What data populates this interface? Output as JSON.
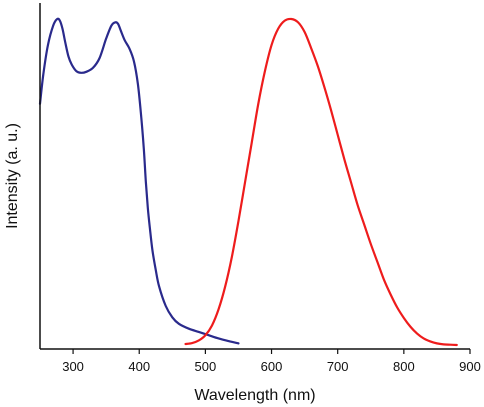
{
  "chart_data": {
    "type": "line",
    "title": "",
    "xlabel": "Wavelength (nm)",
    "ylabel": "Intensity (a. u.)",
    "xlim": [
      250,
      900
    ],
    "ylim": [
      0,
      1
    ],
    "x_ticks": [
      300,
      400,
      500,
      600,
      700,
      800,
      900
    ],
    "y_ticks": [],
    "grid": false,
    "legend": "none",
    "series": [
      {
        "color": "#2a2a8c",
        "x": [
          250,
          255,
          262,
          270,
          276,
          280,
          284,
          288,
          293,
          298,
          305,
          312,
          320,
          330,
          340,
          350,
          358,
          364,
          368,
          372,
          378,
          385,
          392,
          398,
          403,
          407,
          410,
          413,
          416,
          420,
          425,
          430,
          440,
          450,
          460,
          475,
          490,
          505,
          520,
          535,
          550
        ],
        "y": [
          0.74,
          0.83,
          0.92,
          0.98,
          1.0,
          0.995,
          0.97,
          0.93,
          0.885,
          0.86,
          0.84,
          0.835,
          0.838,
          0.85,
          0.88,
          0.94,
          0.98,
          0.99,
          0.985,
          0.965,
          0.935,
          0.91,
          0.87,
          0.8,
          0.7,
          0.6,
          0.5,
          0.42,
          0.36,
          0.29,
          0.23,
          0.18,
          0.12,
          0.085,
          0.065,
          0.05,
          0.04,
          0.03,
          0.02,
          0.012,
          0.005
        ]
      },
      {
        "color": "#ee1c1c",
        "x": [
          470,
          480,
          490,
          500,
          510,
          520,
          530,
          540,
          550,
          560,
          570,
          580,
          590,
          600,
          610,
          620,
          630,
          640,
          650,
          660,
          670,
          680,
          690,
          700,
          710,
          720,
          730,
          740,
          750,
          760,
          770,
          780,
          790,
          800,
          810,
          820,
          830,
          840,
          850,
          860,
          870,
          880
        ],
        "y": [
          0.003,
          0.006,
          0.014,
          0.03,
          0.06,
          0.11,
          0.18,
          0.27,
          0.38,
          0.5,
          0.62,
          0.74,
          0.84,
          0.92,
          0.97,
          0.995,
          1.0,
          0.99,
          0.96,
          0.91,
          0.855,
          0.79,
          0.72,
          0.645,
          0.57,
          0.5,
          0.43,
          0.37,
          0.31,
          0.255,
          0.2,
          0.155,
          0.115,
          0.083,
          0.056,
          0.035,
          0.02,
          0.011,
          0.005,
          0.002,
          0.001,
          0.0
        ]
      }
    ]
  }
}
